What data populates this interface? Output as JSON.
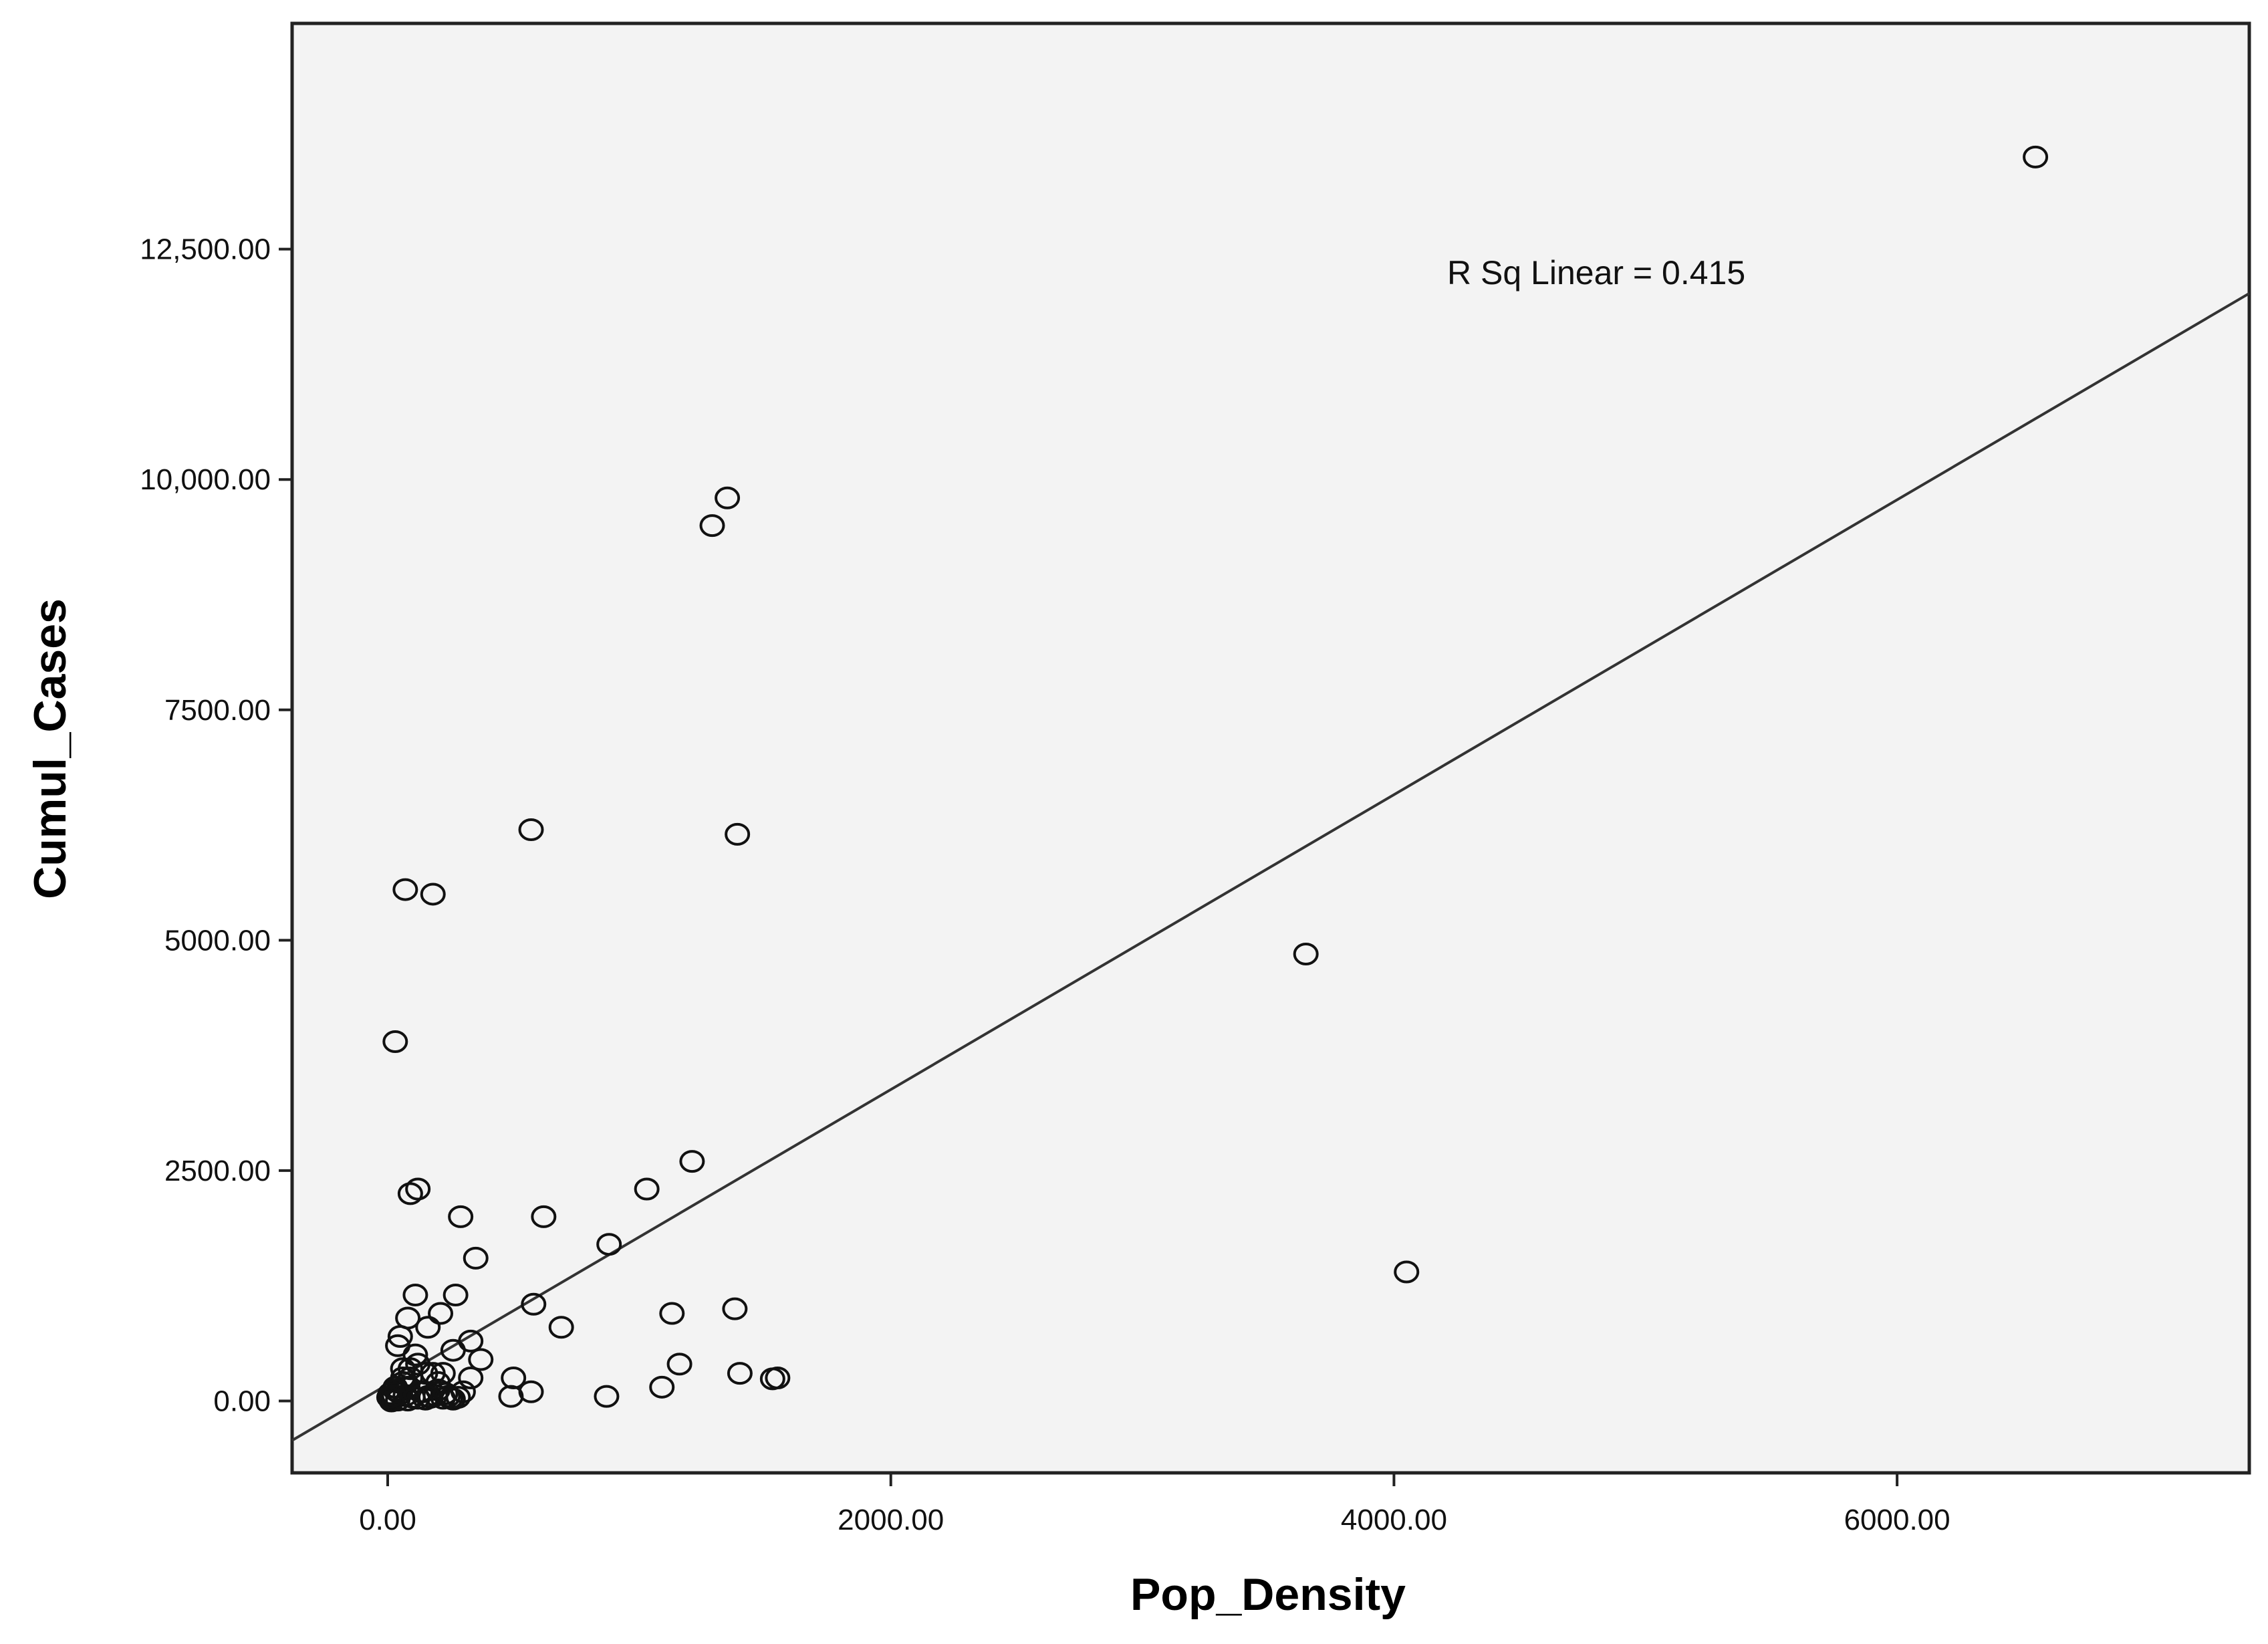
{
  "chart_data": {
    "type": "scatter",
    "title": "",
    "xlabel": "Pop_Density",
    "ylabel": "Cumul_Cases",
    "xlim": [
      -380,
      7400
    ],
    "ylim": [
      -780,
      14950
    ],
    "x_ticks": [
      0,
      2000,
      4000,
      6000
    ],
    "x_tick_labels": [
      "0.00",
      "2000.00",
      "4000.00",
      "6000.00"
    ],
    "y_ticks": [
      0,
      2500,
      5000,
      7500,
      10000,
      12500
    ],
    "y_tick_labels": [
      "0.00",
      "2500.00",
      "5000.00",
      "7500.00",
      "10,000.00",
      "12,500.00"
    ],
    "grid": false,
    "background": "#f3f3f3",
    "point_color": "#111111",
    "fit_line": {
      "type": "linear",
      "intercept": 180,
      "slope": 1.6,
      "label": "R Sq Linear = 0.415"
    },
    "x": [
      6550,
      1350,
      1290,
      570,
      1390,
      70,
      180,
      3650,
      30,
      1210,
      1030,
      120,
      90,
      290,
      620,
      880,
      350,
      4050,
      270,
      580,
      110,
      80,
      1130,
      1380,
      690,
      330,
      210,
      160,
      260,
      40,
      370,
      1160,
      1400,
      500,
      120,
      60,
      180,
      1550,
      1530,
      330,
      1090,
      570,
      490,
      870,
      300,
      140,
      80,
      40,
      200,
      10,
      20,
      50,
      70,
      100,
      120,
      150,
      170,
      190,
      220,
      240,
      260,
      30,
      60,
      90,
      130,
      160,
      200,
      230,
      250,
      280,
      110,
      60,
      150,
      20,
      40,
      80,
      10,
      30,
      5,
      25,
      15,
      90,
      50,
      220
    ],
    "y": [
      13500,
      9800,
      9500,
      6200,
      6150,
      5550,
      5500,
      4850,
      3900,
      2600,
      2300,
      2300,
      2250,
      2000,
      2000,
      1700,
      1550,
      1400,
      1150,
      1050,
      1150,
      900,
      950,
      1000,
      800,
      650,
      950,
      800,
      550,
      600,
      450,
      400,
      300,
      250,
      400,
      250,
      300,
      250,
      240,
      250,
      150,
      100,
      50,
      50,
      100,
      100,
      150,
      100,
      200,
      30,
      50,
      80,
      60,
      40,
      30,
      20,
      40,
      60,
      30,
      50,
      20,
      150,
      200,
      250,
      100,
      50,
      120,
      80,
      30,
      40,
      500,
      350,
      300,
      20,
      10,
      10,
      80,
      120,
      40,
      60,
      0,
      350,
      700,
      300
    ]
  }
}
